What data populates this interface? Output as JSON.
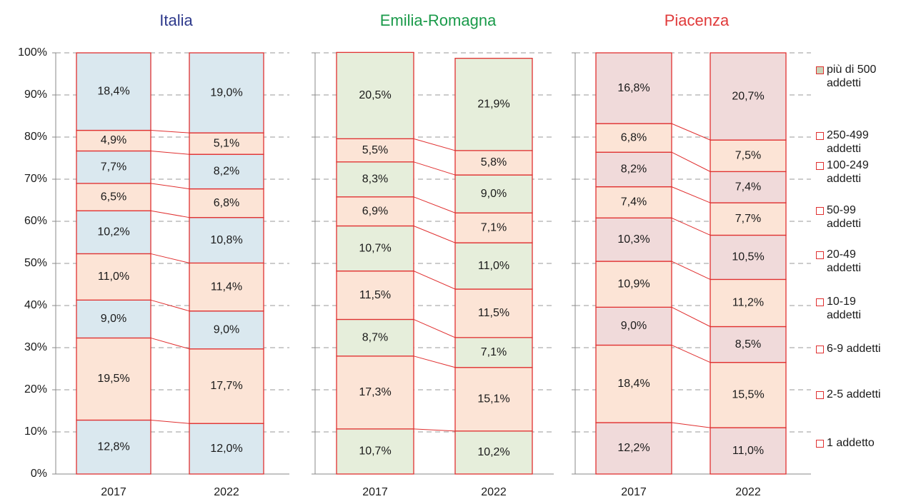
{
  "chart_data": [
    {
      "type": "stacked_bar",
      "title": "Italia",
      "title_color": "#2e3a8c",
      "categories": [
        "2017",
        "2022"
      ],
      "ylim": [
        0,
        100
      ],
      "yticks": [
        {
          "value": 0,
          "label": "0%"
        },
        {
          "value": 10,
          "label": "10%"
        },
        {
          "value": 20,
          "label": "20%"
        },
        {
          "value": 30,
          "label": "30%"
        },
        {
          "value": 40,
          "label": "40%"
        },
        {
          "value": 50,
          "label": "50%"
        },
        {
          "value": 60,
          "label": "60%"
        },
        {
          "value": 70,
          "label": "70%"
        },
        {
          "value": 80,
          "label": "80%"
        },
        {
          "value": 90,
          "label": "90%"
        },
        {
          "value": 100,
          "label": "100%"
        }
      ],
      "grid": true,
      "series": [
        {
          "name": "1 addetto",
          "color": "#dae8ef",
          "values": [
            12.8,
            12.0
          ],
          "value_labels": [
            "12,8%",
            "12,0%"
          ]
        },
        {
          "name": "2-5 addetti",
          "color": "#fce4d6",
          "values": [
            19.5,
            17.7
          ],
          "value_labels": [
            "19,5%",
            "17,7%"
          ]
        },
        {
          "name": "6-9 addetti",
          "color": "#dae8ef",
          "values": [
            9.0,
            9.0
          ],
          "value_labels": [
            "9,0%",
            "9,0%"
          ]
        },
        {
          "name": "10-19 addetti",
          "color": "#fce4d6",
          "values": [
            11.0,
            11.4
          ],
          "value_labels": [
            "11,0%",
            "11,4%"
          ]
        },
        {
          "name": "20-49 addetti",
          "color": "#dae8ef",
          "values": [
            10.2,
            10.8
          ],
          "value_labels": [
            "10,2%",
            "10,8%"
          ]
        },
        {
          "name": "50-99 addetti",
          "color": "#fce4d6",
          "values": [
            6.5,
            6.8
          ],
          "value_labels": [
            "6,5%",
            "6,8%"
          ]
        },
        {
          "name": "100-249 addetti",
          "color": "#dae8ef",
          "values": [
            7.7,
            8.2
          ],
          "value_labels": [
            "7,7%",
            "8,2%"
          ]
        },
        {
          "name": "250-499 addetti",
          "color": "#fce4d6",
          "values": [
            4.9,
            5.1
          ],
          "value_labels": [
            "4,9%",
            "5,1%"
          ]
        },
        {
          "name": "più di 500 addetti",
          "color": "#dae8ef",
          "values": [
            18.4,
            19.0
          ],
          "value_labels": [
            "18,4%",
            "19,0%"
          ]
        }
      ]
    },
    {
      "type": "stacked_bar",
      "title": "Emilia-Romagna",
      "title_color": "#1a9a4a",
      "categories": [
        "2017",
        "2022"
      ],
      "ylim": [
        0,
        100
      ],
      "yticks": [
        0,
        10,
        20,
        30,
        40,
        50,
        60,
        70,
        80,
        90,
        100
      ],
      "grid": true,
      "series": [
        {
          "name": "1 addetto",
          "color": "#e6eedb",
          "values": [
            10.7,
            10.2
          ],
          "value_labels": [
            "10,7%",
            "10,2%"
          ]
        },
        {
          "name": "2-5 addetti",
          "color": "#fce4d6",
          "values": [
            17.3,
            15.1
          ],
          "value_labels": [
            "17,3%",
            "15,1%"
          ]
        },
        {
          "name": "6-9 addetti",
          "color": "#e6eedb",
          "values": [
            8.7,
            7.1
          ],
          "value_labels": [
            "8,7%",
            "7,1%"
          ]
        },
        {
          "name": "10-19 addetti",
          "color": "#fce4d6",
          "values": [
            11.5,
            11.5
          ],
          "value_labels": [
            "11,5%",
            "11,5%"
          ]
        },
        {
          "name": "20-49 addetti",
          "color": "#e6eedb",
          "values": [
            10.7,
            11.0
          ],
          "value_labels": [
            "10,7%",
            "11,0%"
          ]
        },
        {
          "name": "50-99 addetti",
          "color": "#fce4d6",
          "values": [
            6.9,
            7.1
          ],
          "value_labels": [
            "6,9%",
            "7,1%"
          ]
        },
        {
          "name": "100-249 addetti",
          "color": "#e6eedb",
          "values": [
            8.3,
            9.0
          ],
          "value_labels": [
            "8,3%",
            "9,0%"
          ]
        },
        {
          "name": "250-499 addetti",
          "color": "#fce4d6",
          "values": [
            5.5,
            5.8
          ],
          "value_labels": [
            "5,5%",
            "5,8%"
          ]
        },
        {
          "name": "più di 500 addetti",
          "color": "#e6eedb",
          "values": [
            20.5,
            21.9
          ],
          "value_labels": [
            "20,5%",
            "21,9%"
          ]
        }
      ]
    },
    {
      "type": "stacked_bar",
      "title": "Piacenza",
      "title_color": "#e03a3a",
      "categories": [
        "2017",
        "2022"
      ],
      "ylim": [
        0,
        100
      ],
      "yticks": [
        0,
        10,
        20,
        30,
        40,
        50,
        60,
        70,
        80,
        90,
        100
      ],
      "grid": true,
      "series": [
        {
          "name": "1 addetto",
          "color": "#f0dada",
          "values": [
            12.2,
            11.0
          ],
          "value_labels": [
            "12,2%",
            "11,0%"
          ]
        },
        {
          "name": "2-5 addetti",
          "color": "#fce4d6",
          "values": [
            18.4,
            15.5
          ],
          "value_labels": [
            "18,4%",
            "15,5%"
          ]
        },
        {
          "name": "6-9 addetti",
          "color": "#f0dada",
          "values": [
            9.0,
            8.5
          ],
          "value_labels": [
            "9,0%",
            "8,5%"
          ]
        },
        {
          "name": "10-19 addetti",
          "color": "#fce4d6",
          "values": [
            10.9,
            11.2
          ],
          "value_labels": [
            "10,9%",
            "11,2%"
          ]
        },
        {
          "name": "20-49 addetti",
          "color": "#f0dada",
          "values": [
            10.3,
            10.5
          ],
          "value_labels": [
            "10,3%",
            "10,5%"
          ]
        },
        {
          "name": "50-99 addetti",
          "color": "#fce4d6",
          "values": [
            7.4,
            7.7
          ],
          "value_labels": [
            "7,4%",
            "7,7%"
          ]
        },
        {
          "name": "100-249 addetti",
          "color": "#f0dada",
          "values": [
            8.2,
            7.4
          ],
          "value_labels": [
            "8,2%",
            "7,4%"
          ]
        },
        {
          "name": "250-499 addetti",
          "color": "#fce4d6",
          "values": [
            6.8,
            7.5
          ],
          "value_labels": [
            "6,8%",
            "7,5%"
          ]
        },
        {
          "name": "più di 500 addetti",
          "color": "#f0dada",
          "values": [
            16.8,
            20.7
          ],
          "value_labels": [
            "16,8%",
            "20,7%"
          ]
        }
      ]
    }
  ]
}
